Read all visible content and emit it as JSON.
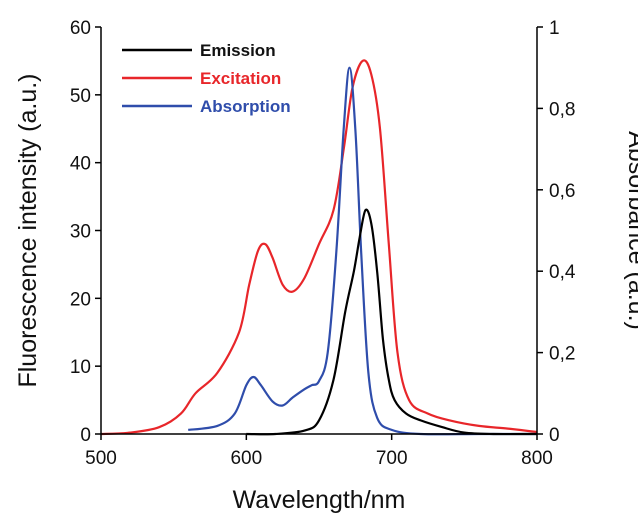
{
  "chart_data": {
    "type": "line",
    "title": "",
    "xlabel": "Wavelength/nm",
    "ylabel_left": "Fluorescence intensity (a.u.)",
    "ylabel_right": "Absorbance (a.u.)",
    "xlim": [
      500,
      800
    ],
    "ylim_left": [
      0,
      60
    ],
    "ylim_right": [
      0,
      1
    ],
    "x_ticks": [
      500,
      600,
      700,
      800
    ],
    "x_tick_labels": [
      "500",
      "600",
      "700",
      "800"
    ],
    "y_left_ticks": [
      0,
      10,
      20,
      30,
      40,
      50,
      60
    ],
    "y_left_tick_labels": [
      "0",
      "10",
      "20",
      "30",
      "40",
      "50",
      "60"
    ],
    "y_right_ticks": [
      0,
      0.2,
      0.4,
      0.6,
      0.8,
      1
    ],
    "y_right_tick_labels": [
      "0",
      "0,2",
      "0,4",
      "0,6",
      "0,8",
      "1"
    ],
    "grid": false,
    "legend_position": "top-left",
    "series": [
      {
        "name": "Emission",
        "color": "#000000",
        "axis": "left",
        "points": [
          [
            600,
            0
          ],
          [
            620,
            0
          ],
          [
            640,
            0.5
          ],
          [
            650,
            2
          ],
          [
            660,
            8
          ],
          [
            668,
            18
          ],
          [
            674,
            24
          ],
          [
            678,
            29
          ],
          [
            682,
            33
          ],
          [
            686,
            31
          ],
          [
            690,
            24
          ],
          [
            694,
            14
          ],
          [
            698,
            8
          ],
          [
            702,
            5
          ],
          [
            710,
            3
          ],
          [
            720,
            2
          ],
          [
            735,
            1
          ],
          [
            750,
            0.2
          ],
          [
            770,
            0
          ],
          [
            800,
            0
          ]
        ]
      },
      {
        "name": "Excitation",
        "color": "#e8262a",
        "axis": "left",
        "points": [
          [
            500,
            0
          ],
          [
            520,
            0.2
          ],
          [
            540,
            1
          ],
          [
            555,
            3
          ],
          [
            565,
            6
          ],
          [
            580,
            9
          ],
          [
            595,
            15
          ],
          [
            602,
            22
          ],
          [
            608,
            27
          ],
          [
            613,
            28
          ],
          [
            618,
            26
          ],
          [
            625,
            22
          ],
          [
            632,
            21
          ],
          [
            640,
            23
          ],
          [
            650,
            28
          ],
          [
            660,
            33
          ],
          [
            667,
            42
          ],
          [
            673,
            51
          ],
          [
            680,
            55
          ],
          [
            686,
            53
          ],
          [
            692,
            45
          ],
          [
            698,
            28
          ],
          [
            704,
            12
          ],
          [
            712,
            5
          ],
          [
            725,
            3
          ],
          [
            740,
            2
          ],
          [
            760,
            1.2
          ],
          [
            780,
            0.8
          ],
          [
            800,
            0.3
          ]
        ]
      },
      {
        "name": "Absorption",
        "color": "#2f4dab",
        "axis": "right",
        "points": [
          [
            560,
            0.01
          ],
          [
            580,
            0.02
          ],
          [
            592,
            0.05
          ],
          [
            600,
            0.12
          ],
          [
            605,
            0.14
          ],
          [
            610,
            0.12
          ],
          [
            618,
            0.08
          ],
          [
            625,
            0.07
          ],
          [
            632,
            0.09
          ],
          [
            640,
            0.11
          ],
          [
            645,
            0.12
          ],
          [
            650,
            0.13
          ],
          [
            656,
            0.2
          ],
          [
            662,
            0.45
          ],
          [
            667,
            0.75
          ],
          [
            671,
            0.9
          ],
          [
            675,
            0.75
          ],
          [
            679,
            0.45
          ],
          [
            684,
            0.15
          ],
          [
            690,
            0.04
          ],
          [
            700,
            0.01
          ],
          [
            720,
            0.0
          ],
          [
            760,
            0.0
          ],
          [
            800,
            0.0
          ]
        ]
      }
    ]
  }
}
